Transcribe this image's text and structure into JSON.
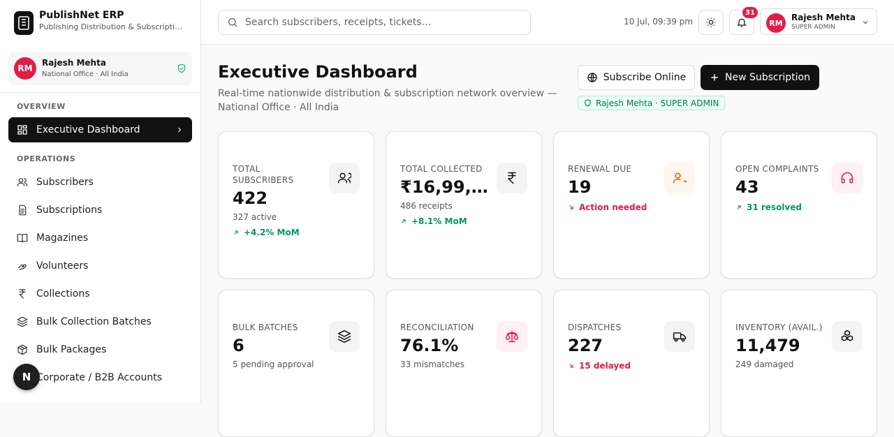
{
  "brand": {
    "name": "PublishNet ERP",
    "tagline": "Publishing Distribution & Subscripti…"
  },
  "user": {
    "initials": "RM",
    "name": "Rajesh Mehta",
    "office": "National Office · All India"
  },
  "nav": [
    {
      "title": "OVERVIEW",
      "items": [
        "Executive Dashboard"
      ]
    },
    {
      "title": "OPERATIONS",
      "items": [
        "Subscribers",
        "Subscriptions",
        "Magazines",
        "Volunteers",
        "Collections",
        "Bulk Collection Batches",
        "Bulk Packages",
        "Corporate / B2B Accounts"
      ]
    }
  ],
  "fab": "N",
  "header": {
    "search_placeholder": "Search subscribers, receipts, tickets...",
    "datetime": "10 Jul, 09:39 pm",
    "notifications": "31",
    "initials": "RM",
    "user_name": "Rajesh Mehta",
    "user_role": "SUPER ADMIN"
  },
  "page": {
    "title": "Executive Dashboard",
    "subtitle": "Real-time nationwide distribution & subscription network overview — National Office · All India",
    "buttons": [
      "Subscribe Online",
      "New Subscription"
    ],
    "badge": "Rajesh Mehta · SUPER ADMIN"
  },
  "cards": [
    {
      "label": "TOTAL SUBSCRIBERS",
      "value": "422",
      "sub": "327 active",
      "trend": "+4.2% MoM",
      "direction": "up"
    },
    {
      "label": "TOTAL COLLECTED",
      "value": "₹16,99,…",
      "sub": "486 receipts",
      "trend": "+8.1% MoM",
      "direction": "up"
    },
    {
      "label": "RENEWAL DUE",
      "value": "19",
      "trend": "Action needed",
      "direction": "down"
    },
    {
      "label": "OPEN COMPLAINTS",
      "value": "43",
      "trend": "31 resolved",
      "direction": "up"
    },
    {
      "label": "BULK BATCHES",
      "value": "6",
      "sub": "5 pending approval"
    },
    {
      "label": "RECONCILIATION",
      "value": "76.1%",
      "sub": "33 mismatches"
    },
    {
      "label": "DISPATCHES",
      "value": "227",
      "trend": "15 delayed",
      "direction": "down"
    },
    {
      "label": "INVENTORY (AVAIL.)",
      "value": "11,479",
      "sub": "249 damaged"
    }
  ]
}
